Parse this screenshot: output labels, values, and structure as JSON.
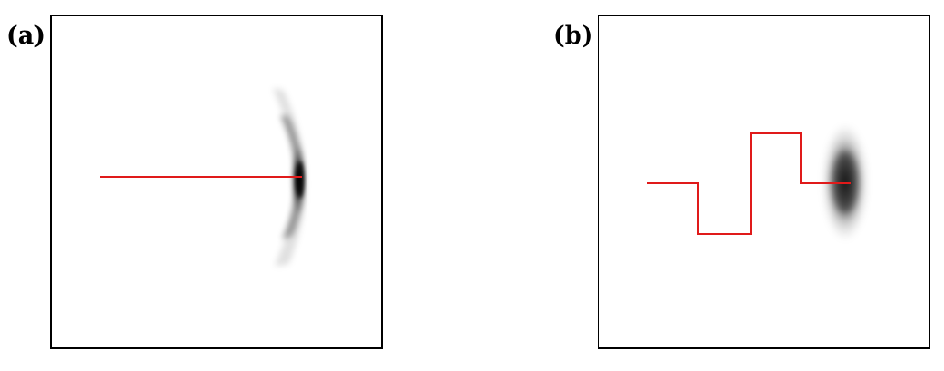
{
  "panels": [
    {
      "label": "(a)",
      "path_style": "straight"
    },
    {
      "label": "(b)",
      "path_style": "zigzag"
    }
  ],
  "colors": {
    "path": "#e01a1a",
    "frame": "#000000",
    "blob": "#000000",
    "background": "#ffffff"
  }
}
